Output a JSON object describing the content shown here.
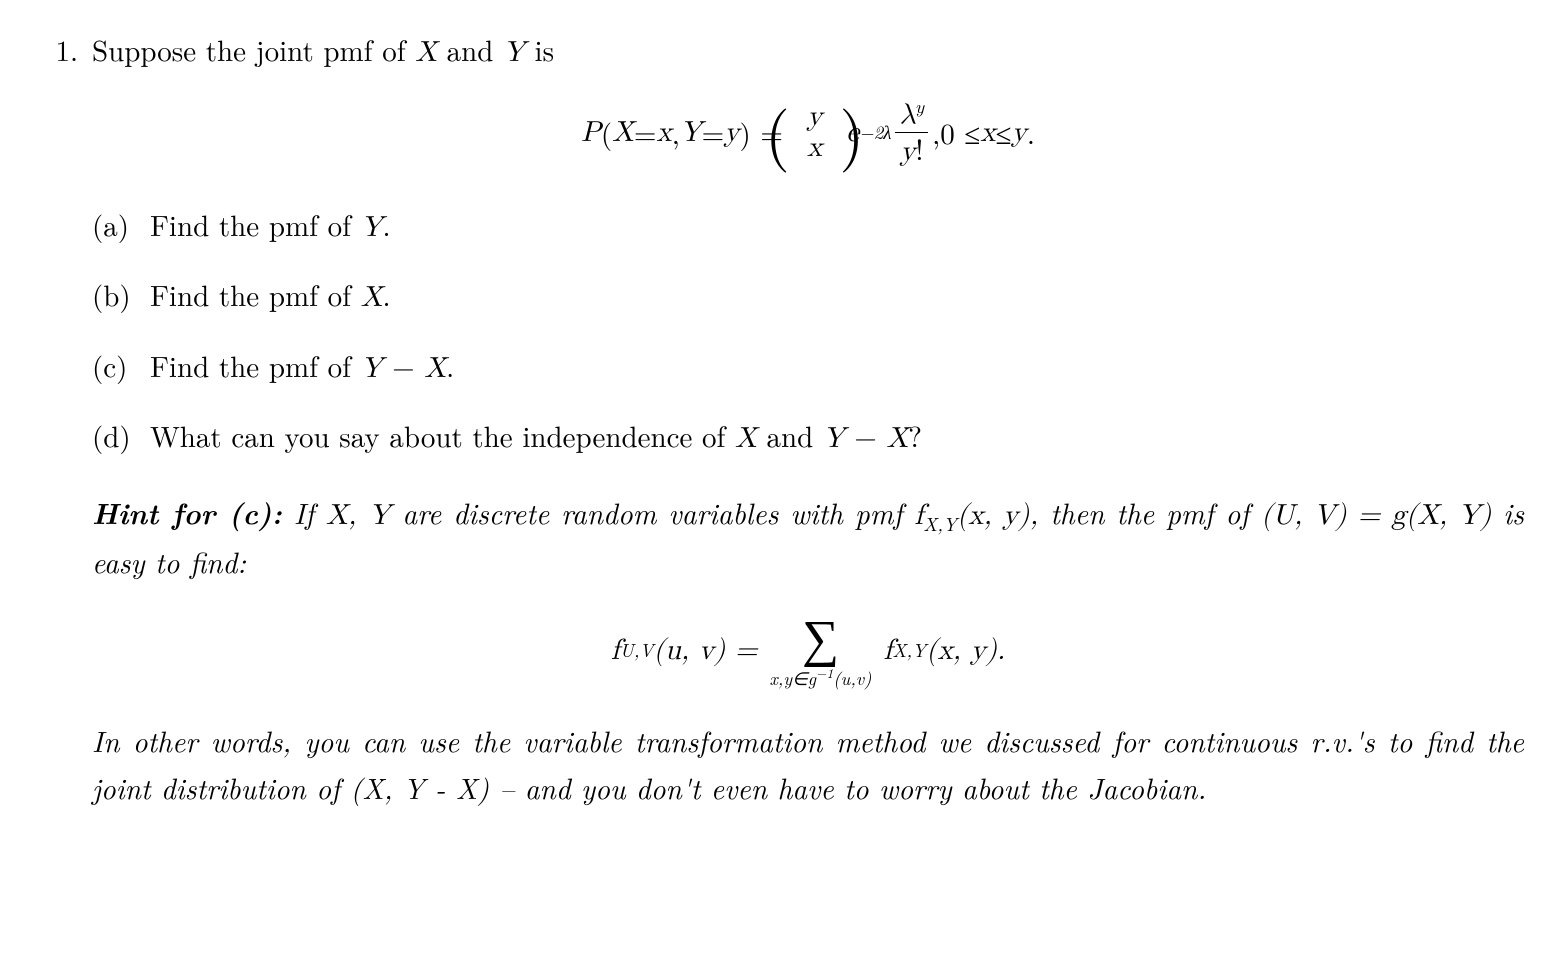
{
  "problem_number": "1.",
  "intro_pre": "Suppose the joint pmf of ",
  "intro_X": "X",
  "intro_and": " and ",
  "intro_Y": "Y",
  "intro_post": " is",
  "eq1": {
    "lhs_P": "P",
    "lhs_open": "(",
    "lhs_X": "X",
    "lhs_eq1": " = ",
    "lhs_x": "x",
    "lhs_comma": ", ",
    "lhs_Y": "Y",
    "lhs_eq2": " = ",
    "lhs_y": "y",
    "lhs_close": ") = ",
    "binom_top": "y",
    "binom_bot": "x",
    "e": "e",
    "exp_neg2lambda": "−2λ",
    "frac_num_lambda": "λ",
    "frac_num_exp": "y",
    "frac_den_y": "y",
    "frac_den_bang": "!",
    "tail_comma": ",  ",
    "range_0": "0 ≤ ",
    "range_x": "x",
    "range_le": " ≤ ",
    "range_y": "y",
    "range_dot": "."
  },
  "parts": {
    "a_label": "(a)",
    "a_text_pre": "Find the pmf of ",
    "a_Y": "Y",
    "a_dot": ".",
    "b_label": "(b)",
    "b_text_pre": "Find the pmf of ",
    "b_X": "X",
    "b_dot": ".",
    "c_label": "(c)",
    "c_text_pre": "Find the pmf of ",
    "c_Y": "Y",
    "c_minus": " − ",
    "c_X": "X",
    "c_dot": ".",
    "d_label": "(d)",
    "d_text_pre": "What can you say about the independence of ",
    "d_X": "X",
    "d_and": " and ",
    "d_Y": "Y",
    "d_minus": " − ",
    "d_X2": "X",
    "d_q": "?"
  },
  "hint": {
    "label": "Hint for (c):",
    "t1": " If ",
    "X": "X",
    "comma1": ", ",
    "Y": "Y",
    "t2": " are discrete random variables with pmf ",
    "f": "f",
    "sub_XY": "X,Y",
    "args_xy": "(x, y)",
    "t3": ", then the pmf of ",
    "UV": "(U,  V) = g(X,  Y)",
    "t4": " is easy to find:"
  },
  "eq2": {
    "f": "f",
    "sub_UV": "U,V",
    "args_uv": "(u, v) = ",
    "sum_sub_pre": "x,y∈g",
    "sum_sub_exp": "−1",
    "sum_sub_post": "(u,v)",
    "rhs_f": "f",
    "rhs_sub": "X,Y",
    "rhs_args": "(x, y).",
    "sigma": "∑"
  },
  "hint2": {
    "line": "In other words, you can use the variable transformation method we discussed for continuous r.v.'s to find the joint distribution of (X,  Y - X) – and you don't even have to worry about the Jacobian."
  },
  "style": {
    "font_size_pt": 29,
    "background": "#ffffff",
    "text_color": "#000000"
  }
}
